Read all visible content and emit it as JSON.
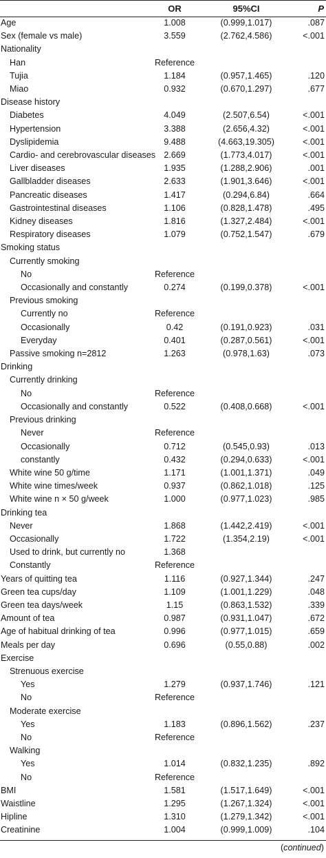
{
  "header": {
    "col_label": "",
    "col_or": "OR",
    "col_ci": "95%CI",
    "col_p": "P"
  },
  "rows": [
    {
      "label": "Age",
      "indent": 0,
      "or": "1.008",
      "ci": "(0.999,1.017)",
      "p": ".087"
    },
    {
      "label": "Sex (female vs male)",
      "indent": 0,
      "or": "3.559",
      "ci": "(2.762,4.586)",
      "p": "<.001"
    },
    {
      "label": "Nationality",
      "indent": 0,
      "or": "",
      "ci": "",
      "p": ""
    },
    {
      "label": "Han",
      "indent": 1,
      "or": "Reference",
      "ci": "",
      "p": ""
    },
    {
      "label": "Tujia",
      "indent": 1,
      "or": "1.184",
      "ci": "(0.957,1.465)",
      "p": ".120"
    },
    {
      "label": "Miao",
      "indent": 1,
      "or": "0.932",
      "ci": "(0.670,1.297)",
      "p": ".677"
    },
    {
      "label": "Disease history",
      "indent": 0,
      "or": "",
      "ci": "",
      "p": ""
    },
    {
      "label": "Diabetes",
      "indent": 1,
      "or": "4.049",
      "ci": "(2.507,6.54)",
      "p": "<.001"
    },
    {
      "label": "Hypertension",
      "indent": 1,
      "or": "3.388",
      "ci": "(2.656,4.32)",
      "p": "<.001"
    },
    {
      "label": "Dyslipidemia",
      "indent": 1,
      "or": "9.488",
      "ci": "(4.663,19.305)",
      "p": "<.001"
    },
    {
      "label": "Cardio- and cerebrovascular diseases",
      "indent": 1,
      "or": "2.669",
      "ci": "(1.773,4.017)",
      "p": "<.001"
    },
    {
      "label": "Liver diseases",
      "indent": 1,
      "or": "1.935",
      "ci": "(1.288,2.906)",
      "p": ".001"
    },
    {
      "label": "Gallbladder diseases",
      "indent": 1,
      "or": "2.633",
      "ci": "(1.901,3.646)",
      "p": "<.001"
    },
    {
      "label": "Pancreatic diseases",
      "indent": 1,
      "or": "1.417",
      "ci": "(0.294,6.84)",
      "p": ".664"
    },
    {
      "label": "Gastrointestinal diseases",
      "indent": 1,
      "or": "1.106",
      "ci": "(0.828,1.478)",
      "p": ".495"
    },
    {
      "label": "Kidney diseases",
      "indent": 1,
      "or": "1.816",
      "ci": "(1.327,2.484)",
      "p": "<.001"
    },
    {
      "label": "Respiratory diseases",
      "indent": 1,
      "or": "1.079",
      "ci": "(0.752,1.547)",
      "p": ".679"
    },
    {
      "label": "Smoking status",
      "indent": 0,
      "or": "",
      "ci": "",
      "p": ""
    },
    {
      "label": "Currently smoking",
      "indent": 1,
      "or": "",
      "ci": "",
      "p": ""
    },
    {
      "label": "No",
      "indent": 2,
      "or": "Reference",
      "ci": "",
      "p": ""
    },
    {
      "label": "Occasionally and constantly",
      "indent": 2,
      "or": "0.274",
      "ci": "(0.199,0.378)",
      "p": "<.001"
    },
    {
      "label": "Previous smoking",
      "indent": 1,
      "or": "",
      "ci": "",
      "p": ""
    },
    {
      "label": "Currently no",
      "indent": 2,
      "or": "Reference",
      "ci": "",
      "p": ""
    },
    {
      "label": "Occasionally",
      "indent": 2,
      "or": "0.42",
      "ci": "(0.191,0.923)",
      "p": ".031"
    },
    {
      "label": "Everyday",
      "indent": 2,
      "or": "0.401",
      "ci": "(0.287,0.561)",
      "p": "<.001"
    },
    {
      "label": "Passive smoking n=2812",
      "indent": 1,
      "or": "1.263",
      "ci": "(0.978,1.63)",
      "p": ".073"
    },
    {
      "label": "Drinking",
      "indent": 0,
      "or": "",
      "ci": "",
      "p": ""
    },
    {
      "label": "Currently drinking",
      "indent": 1,
      "or": "",
      "ci": "",
      "p": ""
    },
    {
      "label": "No",
      "indent": 2,
      "or": "Reference",
      "ci": "",
      "p": ""
    },
    {
      "label": "Occasionally and constantly",
      "indent": 2,
      "or": "0.522",
      "ci": "(0.408,0.668)",
      "p": "<.001"
    },
    {
      "label": "Previous drinking",
      "indent": 1,
      "or": "",
      "ci": "",
      "p": ""
    },
    {
      "label": "Never",
      "indent": 2,
      "or": "Reference",
      "ci": "",
      "p": ""
    },
    {
      "label": "Occasionally",
      "indent": 2,
      "or": "0.712",
      "ci": "(0.545,0.93)",
      "p": ".013"
    },
    {
      "label": "constantly",
      "indent": 2,
      "or": "0.432",
      "ci": "(0.294,0.633)",
      "p": "<.001"
    },
    {
      "label": "White wine 50 g/time",
      "indent": 1,
      "or": "1.171",
      "ci": "(1.001,1.371)",
      "p": ".049"
    },
    {
      "label": "White wine times/week",
      "indent": 1,
      "or": "0.937",
      "ci": "(0.862,1.018)",
      "p": ".125"
    },
    {
      "label": "White wine n × 50 g/week",
      "indent": 1,
      "or": "1.000",
      "ci": "(0.977,1.023)",
      "p": ".985"
    },
    {
      "label": "Drinking tea",
      "indent": 0,
      "or": "",
      "ci": "",
      "p": ""
    },
    {
      "label": "Never",
      "indent": 1,
      "or": "1.868",
      "ci": "(1.442,2.419)",
      "p": "<.001"
    },
    {
      "label": "Occasionally",
      "indent": 1,
      "or": "1.722",
      "ci": "(1.354,2.19)",
      "p": "<.001"
    },
    {
      "label": "Used to drink, but currently no",
      "indent": 1,
      "or": "1.368",
      "ci": "",
      "p": ""
    },
    {
      "label": "Constantly",
      "indent": 1,
      "or": "Reference",
      "ci": "",
      "p": ""
    },
    {
      "label": "Years of quitting tea",
      "indent": 0,
      "or": "1.116",
      "ci": "(0.927,1.344)",
      "p": ".247"
    },
    {
      "label": "Green tea cups/day",
      "indent": 0,
      "or": "1.109",
      "ci": "(1.001,1.229)",
      "p": ".048"
    },
    {
      "label": "Green tea days/week",
      "indent": 0,
      "or": "1.15",
      "ci": "(0.863,1.532)",
      "p": ".339"
    },
    {
      "label": "Amount of tea",
      "indent": 0,
      "or": "0.987",
      "ci": "(0.931,1.047)",
      "p": ".672"
    },
    {
      "label": "Age of habitual drinking of tea",
      "indent": 0,
      "or": "0.996",
      "ci": "(0.977,1.015)",
      "p": ".659"
    },
    {
      "label": "Meals per day",
      "indent": 0,
      "or": "0.696",
      "ci": "(0.55,0.88)",
      "p": ".002"
    },
    {
      "label": "Exercise",
      "indent": 0,
      "or": "",
      "ci": "",
      "p": ""
    },
    {
      "label": "Strenuous exercise",
      "indent": 1,
      "or": "",
      "ci": "",
      "p": ""
    },
    {
      "label": "Yes",
      "indent": 2,
      "or": "1.279",
      "ci": "(0.937,1.746)",
      "p": ".121"
    },
    {
      "label": "No",
      "indent": 2,
      "or": "Reference",
      "ci": "",
      "p": ""
    },
    {
      "label": "Moderate exercise",
      "indent": 1,
      "or": "",
      "ci": "",
      "p": ""
    },
    {
      "label": "Yes",
      "indent": 2,
      "or": "1.183",
      "ci": "(0.896,1.562)",
      "p": ".237"
    },
    {
      "label": "No",
      "indent": 2,
      "or": "Reference",
      "ci": "",
      "p": ""
    },
    {
      "label": "Walking",
      "indent": 1,
      "or": "",
      "ci": "",
      "p": ""
    },
    {
      "label": "Yes",
      "indent": 2,
      "or": "1.014",
      "ci": "(0.832,1.235)",
      "p": ".892"
    },
    {
      "label": "No",
      "indent": 2,
      "or": "Reference",
      "ci": "",
      "p": ""
    },
    {
      "label": "BMI",
      "indent": 0,
      "or": "1.581",
      "ci": "(1.517,1.649)",
      "p": "<.001"
    },
    {
      "label": "Waistline",
      "indent": 0,
      "or": "1.295",
      "ci": "(1.267,1.324)",
      "p": "<.001"
    },
    {
      "label": "Hipline",
      "indent": 0,
      "or": "1.310",
      "ci": "(1.279,1.342)",
      "p": "<.001"
    },
    {
      "label": "Creatinine",
      "indent": 0,
      "or": "1.004",
      "ci": "(0.999,1.009)",
      "p": ".104"
    }
  ],
  "footer": {
    "continued": "continued"
  }
}
